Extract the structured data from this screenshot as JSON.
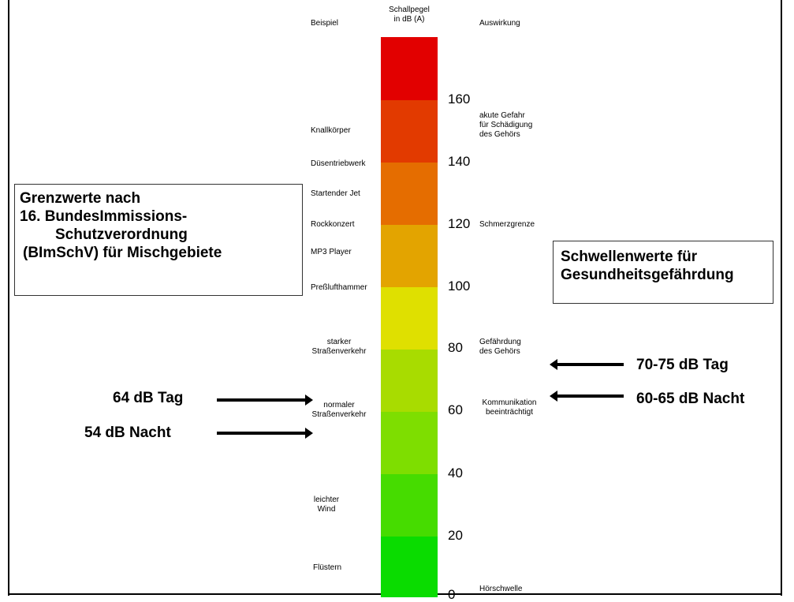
{
  "headers": {
    "beispiel": "Beispiel",
    "schallpegel": [
      "Schallpegel",
      "in dB (A)"
    ],
    "auswirkung": "Auswirkung"
  },
  "examples": [
    [
      "Knallkörper"
    ],
    [
      "Düsentriebwerk"
    ],
    [
      "Startender Jet"
    ],
    [
      "Rockkonzert"
    ],
    [
      "MP3 Player"
    ],
    [
      "Preßlufthammer"
    ],
    [
      "starker",
      "Straßenverkehr"
    ],
    [
      "normaler",
      "Straßenverkehr"
    ],
    [
      "leichter",
      "Wind"
    ],
    [
      "Flüstern"
    ]
  ],
  "scale_ticks": [
    "160",
    "140",
    "120",
    "100",
    "80",
    "60",
    "40",
    "20",
    "0"
  ],
  "effects": [
    [
      "akute Gefahr",
      "für Schädigung",
      "des Gehörs"
    ],
    [
      "Schmerzgrenze"
    ],
    [
      "Gefährdung",
      "des Gehörs"
    ],
    [
      "Kommunikation",
      "beeinträchtigt"
    ],
    [
      "Hörschwelle"
    ]
  ],
  "band_colors": [
    "#e20000",
    "#e23a00",
    "#e56d00",
    "#e3a400",
    "#dfe000",
    "#a8dc00",
    "#7ede00",
    "#46dc00",
    "#0adc00"
  ],
  "left_box": {
    "lines": [
      "Grenzwerte nach",
      "16. BundesImmissions-",
      "Schutzverordnung",
      "(BImSchV) für Mischgebiete"
    ]
  },
  "right_box": {
    "lines": [
      "Schwellenwerte für",
      "Gesundheitsgefährdung"
    ]
  },
  "arrows": {
    "left_tag": "64 dB Tag",
    "left_nacht": "54 dB Nacht",
    "right_tag": "70-75 dB Tag",
    "right_nacht": "60-65 dB Nacht"
  }
}
